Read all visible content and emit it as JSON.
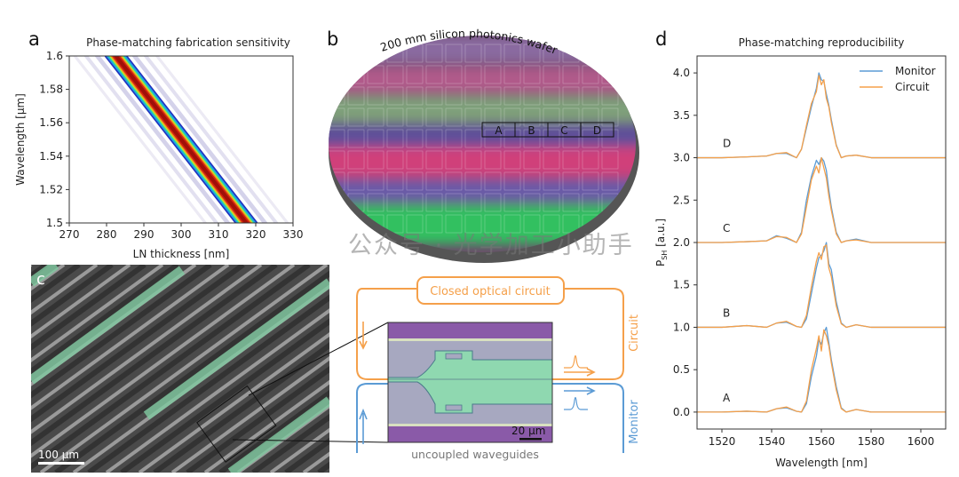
{
  "panel_labels": {
    "a": "a",
    "b": "b",
    "c": "c",
    "d": "d"
  },
  "chart_data": [
    {
      "type": "heatmap",
      "title": "Phase-matching fabrication sensitivity",
      "xlabel": "LN thickness [nm]",
      "ylabel": "Wavelength [µm]",
      "xlim": [
        270,
        330
      ],
      "ylim": [
        1.5,
        1.6
      ],
      "xticks": [
        "270",
        "280",
        "290",
        "300",
        "310",
        "320",
        "330"
      ],
      "yticks": [
        "1.5",
        "1.52",
        "1.54",
        "1.56",
        "1.58",
        "1.6"
      ],
      "peak_line": [
        [
          282.5,
          1.6
        ],
        [
          317.5,
          1.5
        ]
      ],
      "colormap": "jet"
    },
    {
      "type": "line",
      "title": "Phase-matching reproducibility",
      "xlabel": "Wavelength [nm]",
      "ylabel_main": "P",
      "ylabel_sub": "SH",
      "ylabel_unit": " [a.u.]",
      "xlim": [
        1510,
        1610
      ],
      "ylim": [
        -0.2,
        4.2
      ],
      "xticks": [
        "1520",
        "1540",
        "1560",
        "1580",
        "1600"
      ],
      "yticks": [
        "0.0",
        "0.5",
        "1.0",
        "1.5",
        "2.0",
        "2.5",
        "3.0",
        "3.5",
        "4.0"
      ],
      "legend": {
        "position": "top-right",
        "entries": [
          "Monitor",
          "Circuit"
        ]
      },
      "colors": {
        "Monitor": "#5b9bd5",
        "Circuit": "#f5a04a"
      },
      "x": [
        1510,
        1520,
        1530,
        1538,
        1542,
        1546,
        1550,
        1552,
        1554,
        1556,
        1558,
        1559,
        1560,
        1561,
        1562,
        1563,
        1564,
        1566,
        1568,
        1570,
        1574,
        1580,
        1590,
        1600,
        1610
      ],
      "traces": [
        {
          "label": "A",
          "offset": 0,
          "Monitor": [
            0,
            0,
            0.01,
            0,
            0.04,
            0.05,
            0.01,
            0,
            0.1,
            0.42,
            0.66,
            0.85,
            0.8,
            0.93,
            1.0,
            0.82,
            0.62,
            0.3,
            0.05,
            0,
            0.03,
            0,
            0,
            0,
            0
          ],
          "Circuit": [
            0,
            0,
            0.01,
            0,
            0.04,
            0.06,
            0.01,
            0,
            0.13,
            0.5,
            0.75,
            0.9,
            0.72,
            0.97,
            0.9,
            0.78,
            0.58,
            0.26,
            0.04,
            0,
            0.03,
            0,
            0,
            0,
            0
          ]
        },
        {
          "label": "B",
          "offset": 1,
          "Monitor": [
            0,
            0,
            0.02,
            0,
            0.05,
            0.06,
            0.01,
            0,
            0.1,
            0.4,
            0.7,
            0.82,
            0.85,
            0.9,
            1.0,
            0.75,
            0.68,
            0.3,
            0.05,
            0,
            0.03,
            0,
            0,
            0,
            0
          ],
          "Circuit": [
            0,
            0,
            0.02,
            0,
            0.05,
            0.07,
            0.01,
            0,
            0.14,
            0.48,
            0.78,
            0.88,
            0.8,
            0.95,
            0.97,
            0.7,
            0.6,
            0.25,
            0.04,
            0,
            0.03,
            0,
            0,
            0,
            0
          ]
        },
        {
          "label": "C",
          "offset": 2,
          "Monitor": [
            0,
            0,
            0.01,
            0.02,
            0.08,
            0.05,
            0,
            0.12,
            0.5,
            0.78,
            0.97,
            0.92,
            1.0,
            0.96,
            0.85,
            0.62,
            0.42,
            0.12,
            0,
            0.02,
            0.04,
            0,
            0,
            0,
            0
          ],
          "Circuit": [
            0,
            0,
            0.01,
            0.02,
            0.07,
            0.06,
            0,
            0.1,
            0.42,
            0.74,
            0.9,
            0.82,
            1.0,
            0.88,
            0.76,
            0.55,
            0.38,
            0.1,
            0,
            0.02,
            0.03,
            0,
            0,
            0,
            0
          ]
        },
        {
          "label": "D",
          "offset": 3,
          "Monitor": [
            0,
            0,
            0.01,
            0.02,
            0.05,
            0.05,
            0,
            0.1,
            0.35,
            0.6,
            0.82,
            1.0,
            0.92,
            0.9,
            0.75,
            0.62,
            0.45,
            0.15,
            0,
            0.02,
            0.03,
            0,
            0,
            0,
            0
          ],
          "Circuit": [
            0,
            0,
            0.01,
            0.02,
            0.05,
            0.06,
            0,
            0.1,
            0.38,
            0.64,
            0.78,
            0.97,
            0.86,
            0.92,
            0.7,
            0.6,
            0.42,
            0.14,
            0,
            0.02,
            0.03,
            0,
            0,
            0,
            0
          ]
        }
      ]
    }
  ],
  "wafer": {
    "title": "200 mm silicon photonics wafer",
    "dies": [
      "A",
      "B",
      "C",
      "D"
    ]
  },
  "sem": {
    "scale_bar": "100 µm"
  },
  "circuit_diagram": {
    "closed_label": "Closed optical circuit",
    "circuit_label": "Circuit",
    "monitor_label": "Monitor",
    "bottom_label": "uncoupled waveguides",
    "scale_bar": "20 µm",
    "colors": {
      "circuit": "#f5a04a",
      "monitor": "#5b9bd5"
    }
  },
  "watermark": "公众号 · 光学加工小助手"
}
